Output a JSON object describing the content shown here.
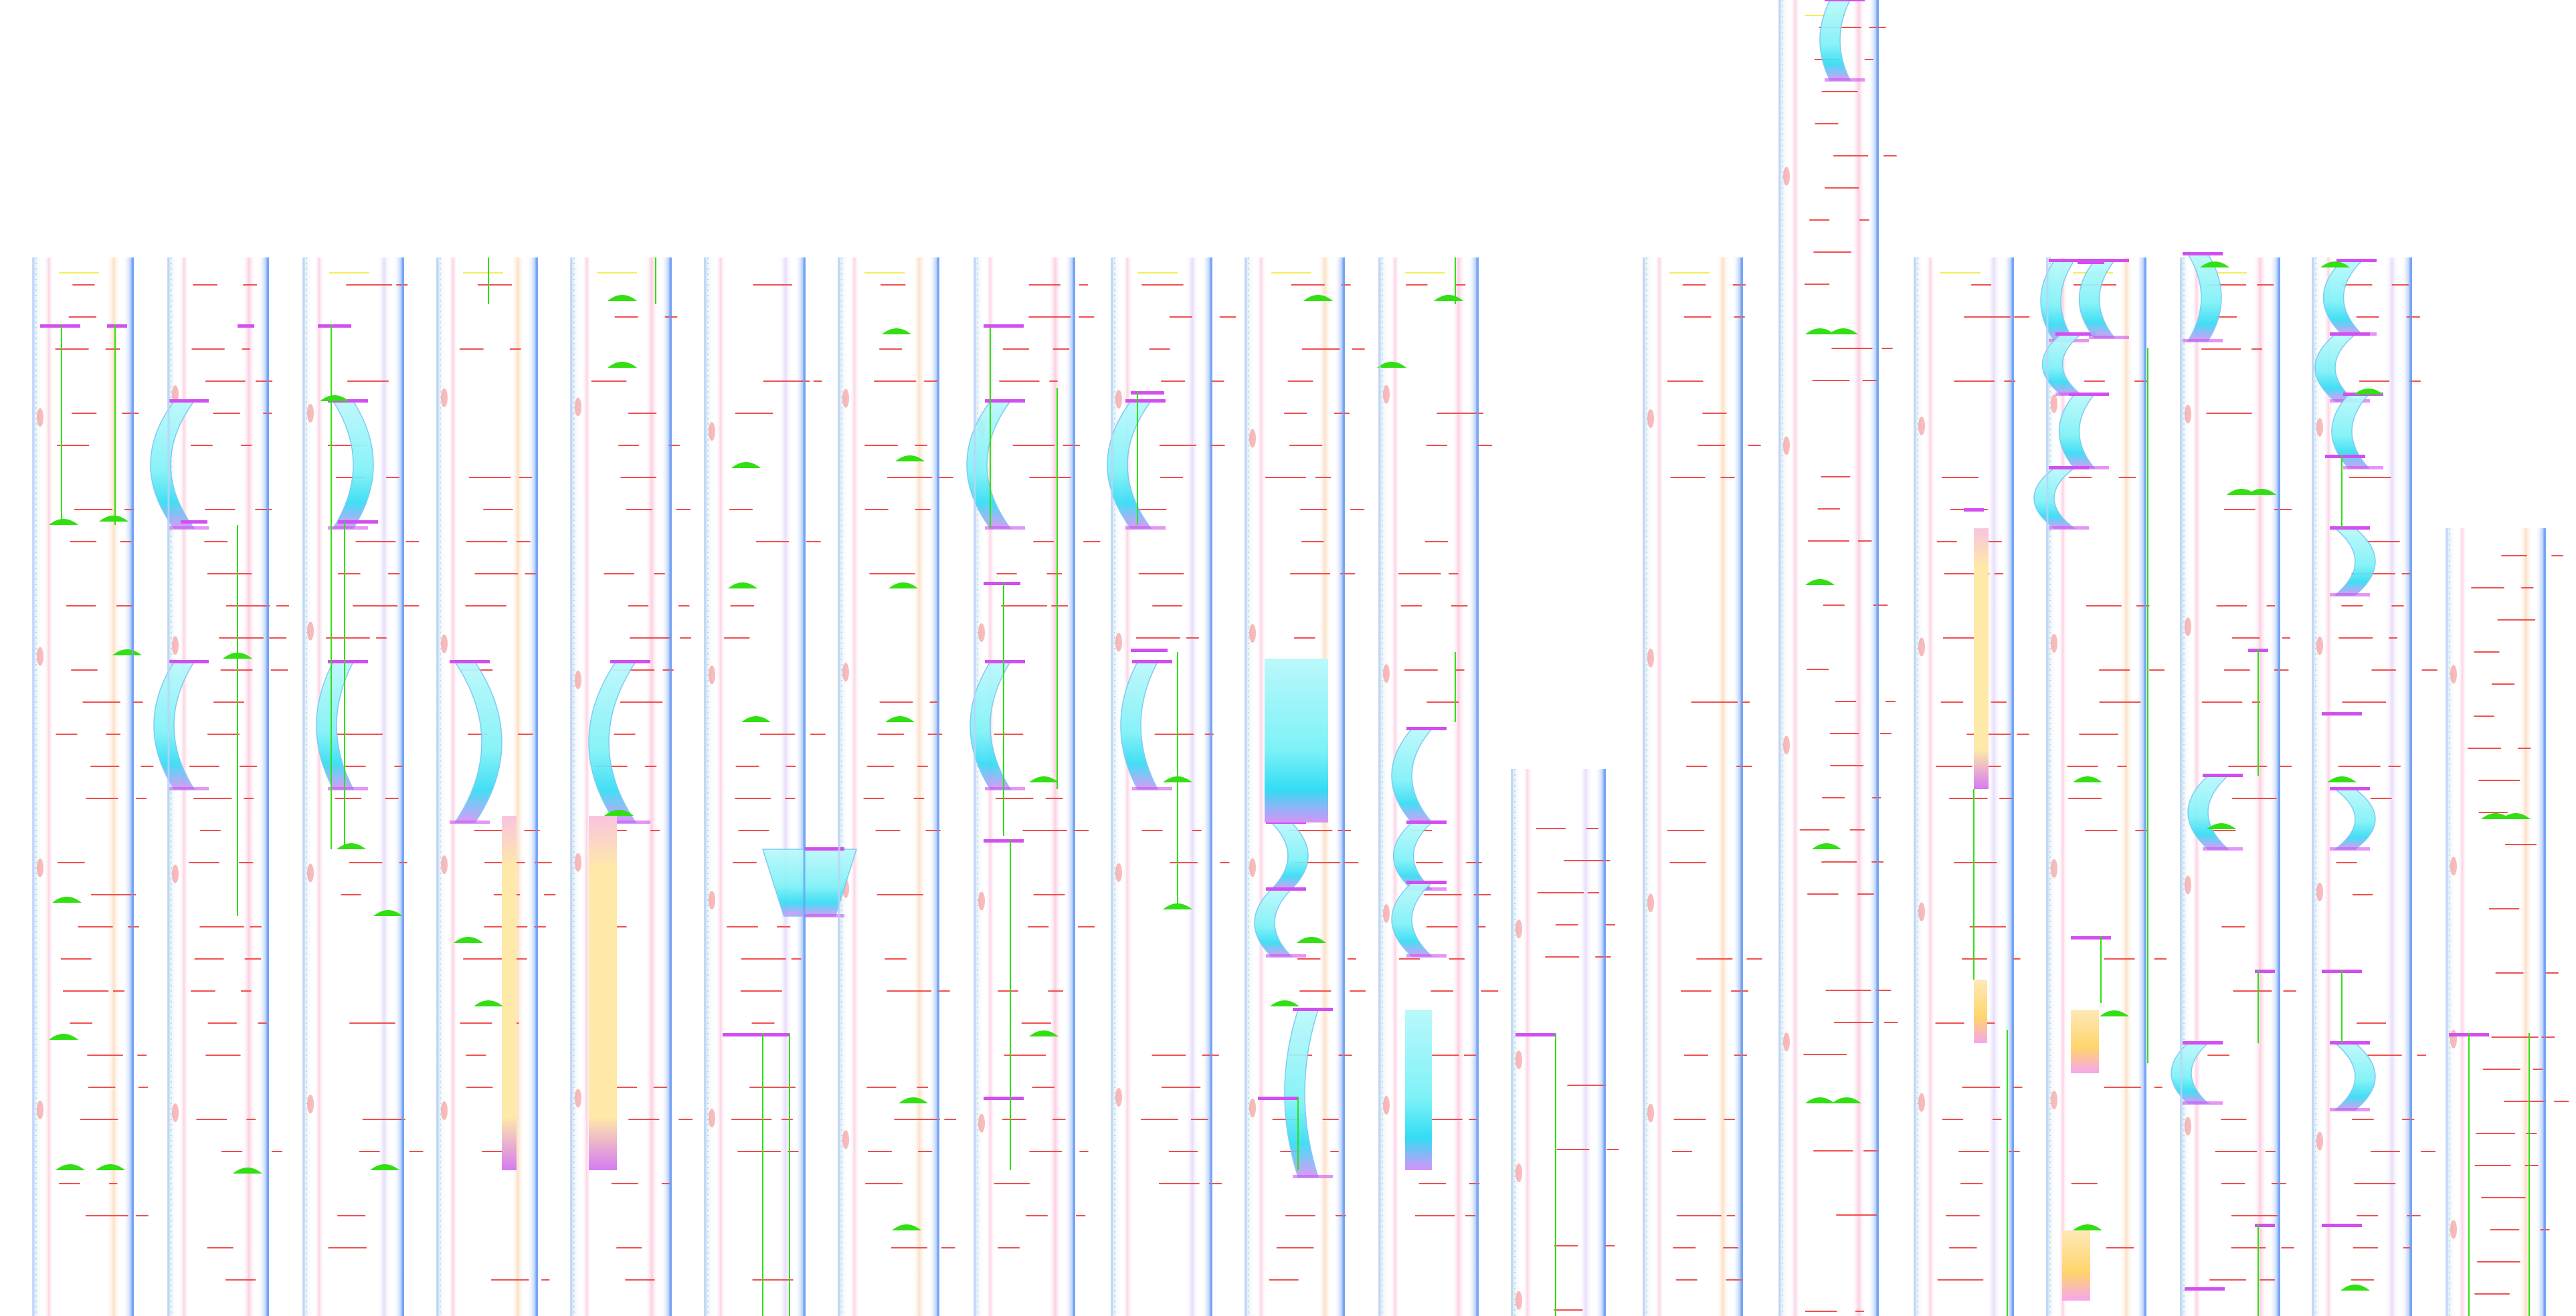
{
  "page": {
    "background": "#ffffff"
  },
  "palette": {
    "edge_left": "#bcd3f7",
    "edge_right": "#6fa2f4",
    "edge_blue_dark": "#3b67e8",
    "band_pink": "#f7a6c8",
    "band_orange": "#f9c79a",
    "band_purple": "#d7c6f3",
    "band_light": "#eef3ff",
    "red_marks": "#ef3c3c",
    "green_marks": "#31df12",
    "magenta_bar": "#d24ef0",
    "cyan_fill": "#7ef2f7",
    "cyan_strong": "#3ed8f4",
    "lavender_fill": "#d8b3fb",
    "yellow_fill": "#ffe9a8",
    "gold_fill": "#ffd46b",
    "tan_fill": "#f6dfb9"
  },
  "lanes": [
    {
      "id": 1,
      "top_frac": 0.0
    },
    {
      "id": 2,
      "top_frac": 0.0
    },
    {
      "id": 3,
      "top_frac": 0.0
    },
    {
      "id": 4,
      "top_frac": 0.0
    },
    {
      "id": 5,
      "top_frac": 0.0
    },
    {
      "id": 6,
      "top_frac": 0.0
    },
    {
      "id": 7,
      "top_frac": 0.0
    },
    {
      "id": 8,
      "top_frac": 0.0
    },
    {
      "id": 9,
      "top_frac": 0.0
    },
    {
      "id": 10,
      "top_frac": 0.0
    },
    {
      "id": 11,
      "top_frac": 0.0
    },
    {
      "id": 12,
      "top_frac": 0.0
    },
    {
      "id": 13,
      "top_frac": 0.0
    },
    {
      "id": 14,
      "top_frac": 0.0
    },
    {
      "id": 15,
      "top_frac": 0.0
    },
    {
      "id": 16,
      "top_frac": 0.0
    },
    {
      "id": 17,
      "top_frac": 0.0
    },
    {
      "id": 18,
      "top_frac": 0.0
    },
    {
      "id": 19,
      "top_frac": 0.0
    }
  ]
}
